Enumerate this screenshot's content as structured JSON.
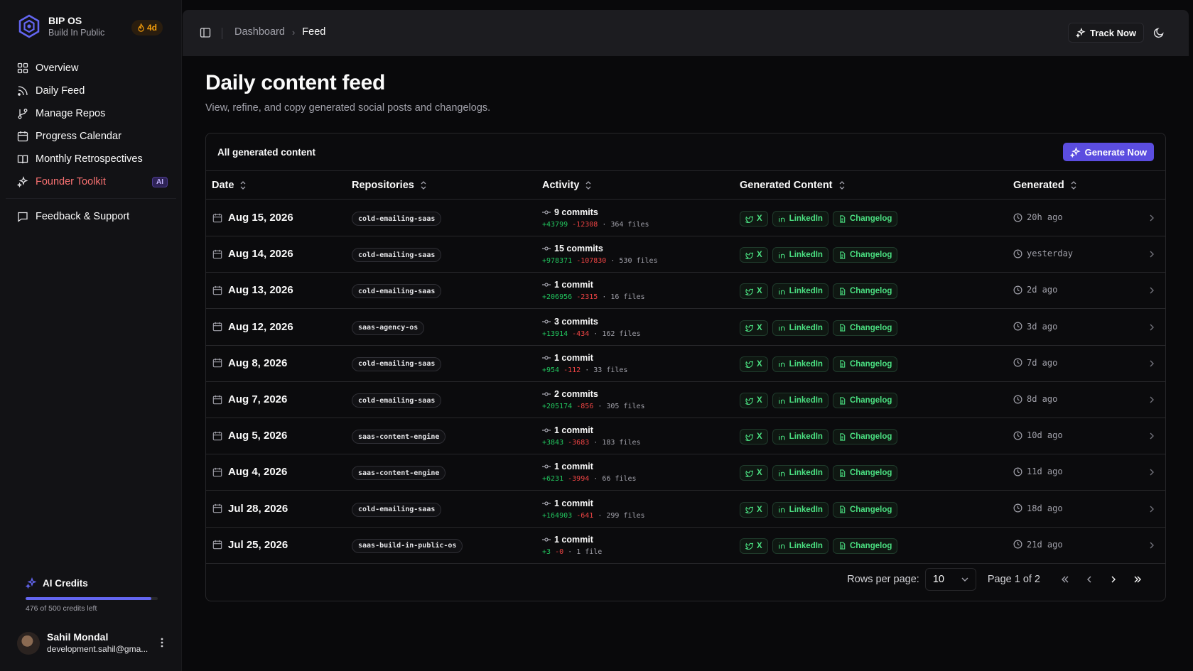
{
  "brand": {
    "title": "BIP OS",
    "subtitle": "Build In Public",
    "streak": "4d"
  },
  "sidebar": {
    "items": [
      {
        "label": "Overview",
        "icon": "grid-icon"
      },
      {
        "label": "Daily Feed",
        "icon": "rss-icon"
      },
      {
        "label": "Manage Repos",
        "icon": "git-branch-icon"
      },
      {
        "label": "Progress Calendar",
        "icon": "calendar-icon"
      },
      {
        "label": "Monthly Retrospectives",
        "icon": "book-icon"
      },
      {
        "label": "Founder Toolkit",
        "icon": "sparkles-icon",
        "badge": "AI"
      }
    ],
    "secondary": [
      {
        "label": "Feedback & Support",
        "icon": "message-icon"
      }
    ]
  },
  "credits": {
    "title": "AI Credits",
    "used_fraction": 0.952,
    "text": "476 of 500 credits left"
  },
  "user": {
    "name": "Sahil Mondal",
    "email": "development.sahil@gma..."
  },
  "header": {
    "breadcrumb": [
      "Dashboard",
      "Feed"
    ],
    "track_label": "Track Now"
  },
  "page": {
    "title": "Daily content feed",
    "description": "View, refine, and copy generated social posts and changelogs."
  },
  "card": {
    "title": "All generated content",
    "generate_label": "Generate Now"
  },
  "table": {
    "columns": [
      "Date",
      "Repositories",
      "Activity",
      "Generated Content",
      "Generated"
    ],
    "pill_labels": [
      "X",
      "LinkedIn",
      "Changelog"
    ],
    "rows": [
      {
        "date": "Aug 15, 2026",
        "repo": "cold-emailing-saas",
        "commits": "9 commits",
        "plus": "+43799",
        "minus": "-12308",
        "files": "· 364 files",
        "generated": "20h ago"
      },
      {
        "date": "Aug 14, 2026",
        "repo": "cold-emailing-saas",
        "commits": "15 commits",
        "plus": "+978371",
        "minus": "-107830",
        "files": "· 530 files",
        "generated": "yesterday"
      },
      {
        "date": "Aug 13, 2026",
        "repo": "cold-emailing-saas",
        "commits": "1 commit",
        "plus": "+206956",
        "minus": "-2315",
        "files": "· 16 files",
        "generated": "2d ago"
      },
      {
        "date": "Aug 12, 2026",
        "repo": "saas-agency-os",
        "commits": "3 commits",
        "plus": "+13914",
        "minus": "-434",
        "files": "· 162 files",
        "generated": "3d ago"
      },
      {
        "date": "Aug 8, 2026",
        "repo": "cold-emailing-saas",
        "commits": "1 commit",
        "plus": "+954",
        "minus": "-112",
        "files": "· 33 files",
        "generated": "7d ago"
      },
      {
        "date": "Aug 7, 2026",
        "repo": "cold-emailing-saas",
        "commits": "2 commits",
        "plus": "+205174",
        "minus": "-856",
        "files": "· 305 files",
        "generated": "8d ago"
      },
      {
        "date": "Aug 5, 2026",
        "repo": "saas-content-engine",
        "commits": "1 commit",
        "plus": "+3843",
        "minus": "-3683",
        "files": "· 183 files",
        "generated": "10d ago"
      },
      {
        "date": "Aug 4, 2026",
        "repo": "saas-content-engine",
        "commits": "1 commit",
        "plus": "+6231",
        "minus": "-3994",
        "files": "· 66 files",
        "generated": "11d ago"
      },
      {
        "date": "Jul 28, 2026",
        "repo": "cold-emailing-saas",
        "commits": "1 commit",
        "plus": "+164903",
        "minus": "-641",
        "files": "· 299 files",
        "generated": "18d ago"
      },
      {
        "date": "Jul 25, 2026",
        "repo": "saas-build-in-public-os",
        "commits": "1 commit",
        "plus": "+3",
        "minus": "-0",
        "files": "· 1 file",
        "generated": "21d ago"
      }
    ]
  },
  "pagination": {
    "rows_label": "Rows per page:",
    "rows_value": "10",
    "page_info": "Page 1 of 2"
  },
  "colors": {
    "accent": "#5b4de0",
    "success": "#4ade80",
    "danger": "#ef4444",
    "toolkit": "#f87171",
    "streak": "#f59e0b"
  }
}
